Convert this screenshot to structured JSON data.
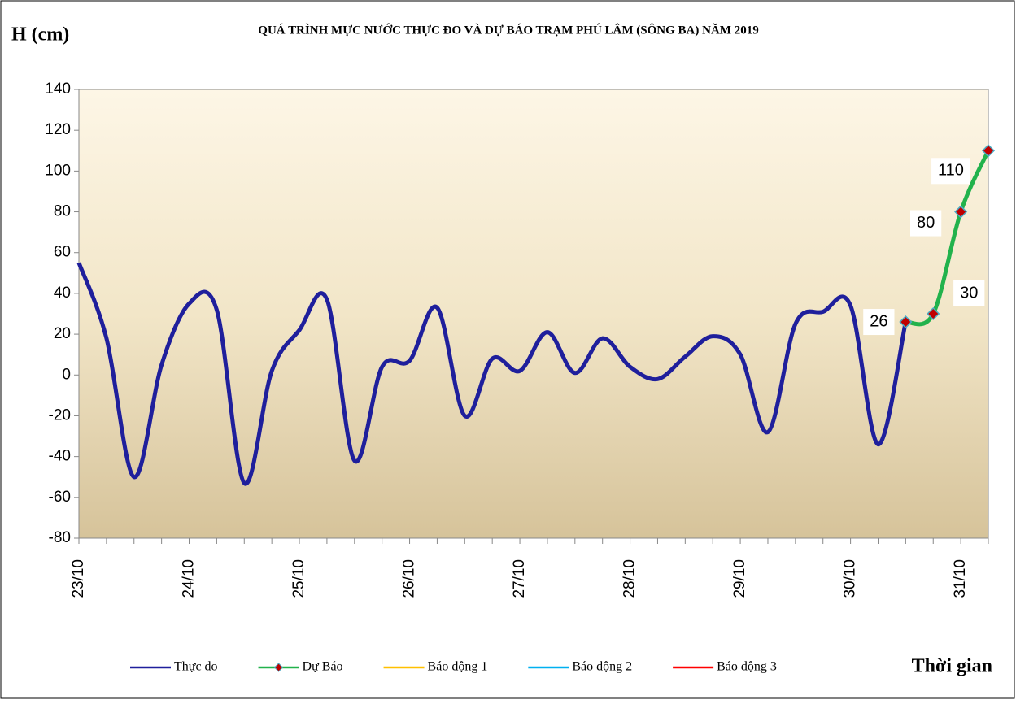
{
  "chart_data": {
    "type": "line",
    "title": "QUÁ TRÌNH MỰC NƯỚC THỰC ĐO VÀ DỰ BÁO TRẠM PHÚ LÂM (SÔNG BA) NĂM 2019",
    "y_label": "H (cm)",
    "x_label": "Thời gian",
    "categories": [
      "23/10",
      null,
      null,
      null,
      "24/10",
      null,
      null,
      null,
      "25/10",
      null,
      null,
      null,
      "26/10",
      null,
      null,
      null,
      "27/10",
      null,
      null,
      null,
      "28/10",
      null,
      null,
      null,
      "29/10",
      null,
      null,
      null,
      "30/10",
      null,
      null,
      null,
      "31/10",
      null
    ],
    "series": [
      {
        "name": "Thực đo",
        "color": "#1f1f9c",
        "values": [
          55,
          18,
          -50,
          5,
          35,
          32,
          -53,
          2,
          22,
          37,
          -42,
          4,
          7,
          33,
          -20,
          8,
          2,
          21,
          1,
          18,
          4,
          -2,
          9,
          19,
          10,
          -28,
          25,
          31,
          34,
          -34,
          26,
          null,
          null,
          null
        ]
      },
      {
        "name": "Dự Báo",
        "color": "#22b24c",
        "marker_color": "#c00000",
        "values": [
          null,
          null,
          null,
          null,
          null,
          null,
          null,
          null,
          null,
          null,
          null,
          null,
          null,
          null,
          null,
          null,
          null,
          null,
          null,
          null,
          null,
          null,
          null,
          null,
          null,
          null,
          null,
          null,
          null,
          null,
          26,
          30,
          80,
          110
        ]
      },
      {
        "name": "Báo động 1",
        "color": "#ffc000",
        "values": [
          null,
          null,
          null,
          null,
          null,
          null,
          null,
          null,
          null,
          null,
          null,
          null,
          null,
          null,
          null,
          null,
          null,
          null,
          null,
          null,
          null,
          null,
          null,
          null,
          null,
          null,
          null,
          null,
          null,
          null,
          null,
          null,
          null,
          null
        ]
      },
      {
        "name": "Báo động 2",
        "color": "#00b0f0",
        "values": [
          null,
          null,
          null,
          null,
          null,
          null,
          null,
          null,
          null,
          null,
          null,
          null,
          null,
          null,
          null,
          null,
          null,
          null,
          null,
          null,
          null,
          null,
          null,
          null,
          null,
          null,
          null,
          null,
          null,
          null,
          null,
          null,
          null,
          null
        ]
      },
      {
        "name": "Báo động 3",
        "color": "#ff0000",
        "values": [
          null,
          null,
          null,
          null,
          null,
          null,
          null,
          null,
          null,
          null,
          null,
          null,
          null,
          null,
          null,
          null,
          null,
          null,
          null,
          null,
          null,
          null,
          null,
          null,
          null,
          null,
          null,
          null,
          null,
          null,
          null,
          null,
          null,
          null
        ]
      }
    ],
    "ylim": [
      -80,
      140
    ],
    "yticks": [
      -80,
      -60,
      -40,
      -20,
      0,
      20,
      40,
      60,
      80,
      100,
      120,
      140
    ]
  }
}
